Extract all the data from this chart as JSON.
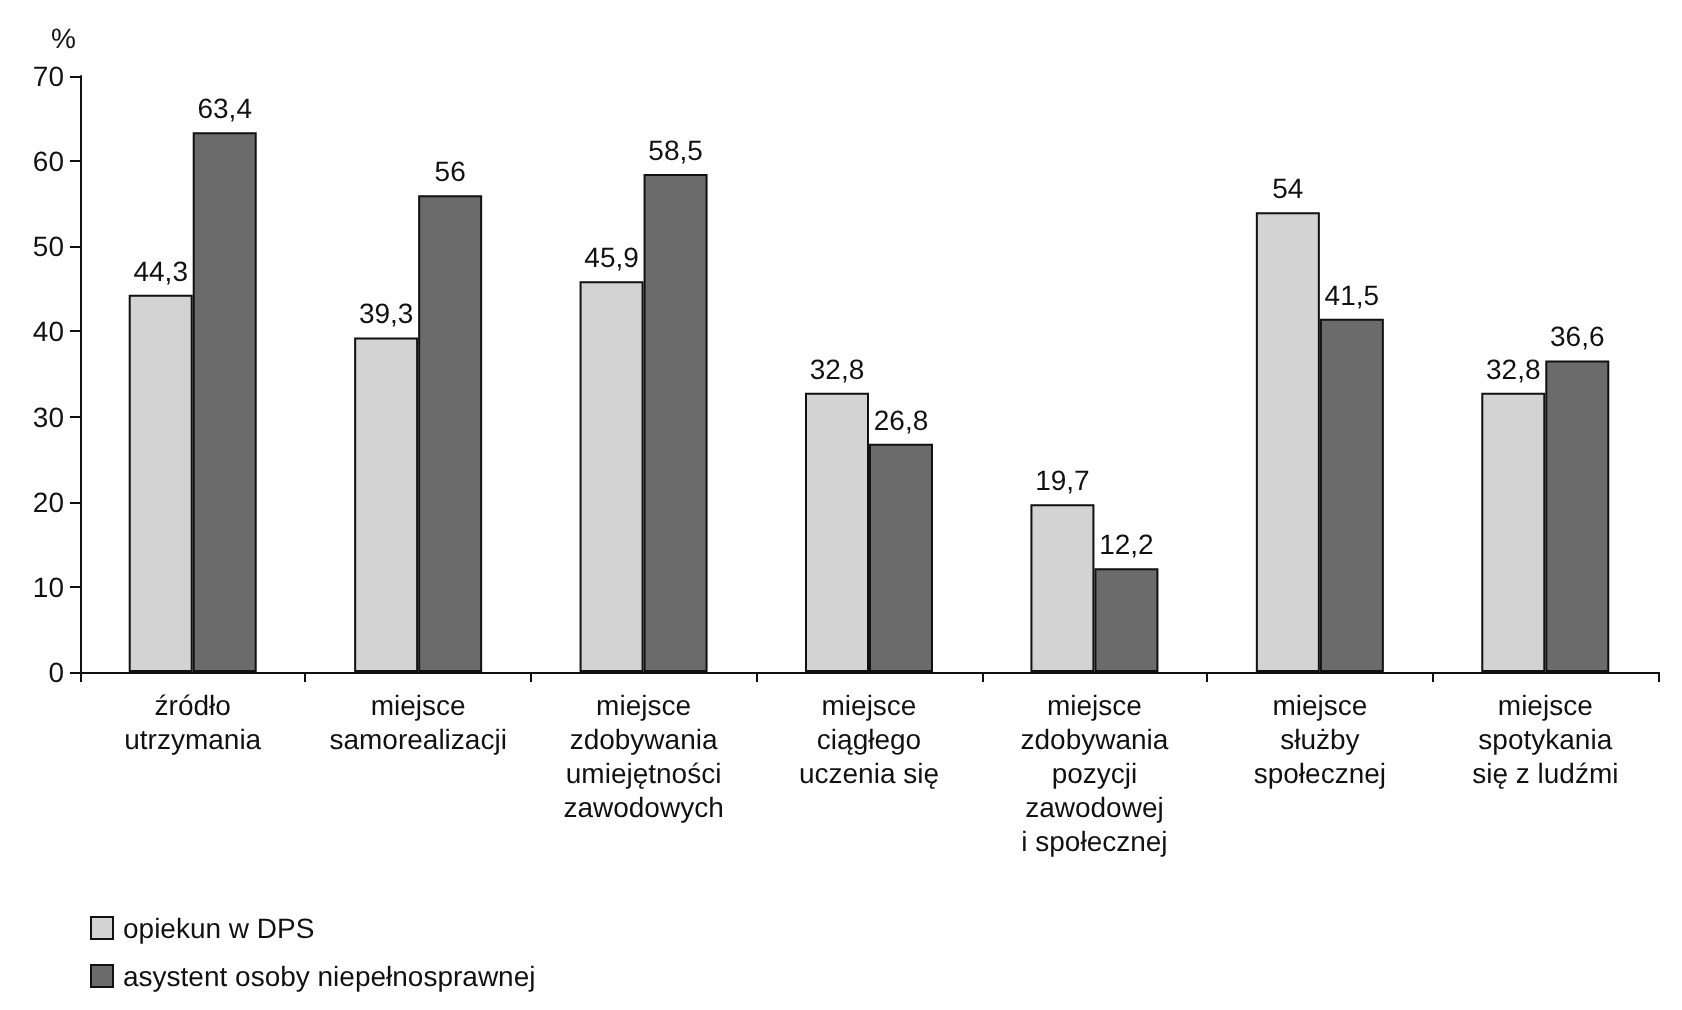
{
  "chart_data": {
    "type": "bar",
    "ylabel": "%",
    "categories": [
      "źródło\nutrzymania",
      "miejsce\nsamorealizacji",
      "miejsce\nzdobywania\numiejętności\nzawodowych",
      "miejsce\nciągłego\nuczenia się",
      "miejsce\nzdobywania\npozycji\nzawodowej\ni społecznej",
      "miejsce\nsłużby\nspołecznej",
      "miejsce\nspotykania\nsię z ludźmi"
    ],
    "series": [
      {
        "name": "opiekun w DPS",
        "color": "#d3d3d3",
        "values": [
          44.3,
          39.3,
          45.9,
          32.8,
          19.7,
          54,
          32.8
        ],
        "value_labels": [
          "44,3",
          "39,3",
          "45,9",
          "32,8",
          "19,7",
          "54",
          "32,8"
        ]
      },
      {
        "name": "asystent osoby niepełnosprawnej",
        "color": "#6b6b6b",
        "values": [
          63.4,
          56,
          58.5,
          26.8,
          12.2,
          41.5,
          36.6
        ],
        "value_labels": [
          "63,4",
          "56",
          "58,5",
          "26,8",
          "12,2",
          "41,5",
          "36,6"
        ]
      }
    ],
    "ylim": [
      0,
      70
    ],
    "yticks": [
      0,
      10,
      20,
      30,
      40,
      50,
      60,
      70
    ],
    "grid": false,
    "legend": "bottom left"
  }
}
